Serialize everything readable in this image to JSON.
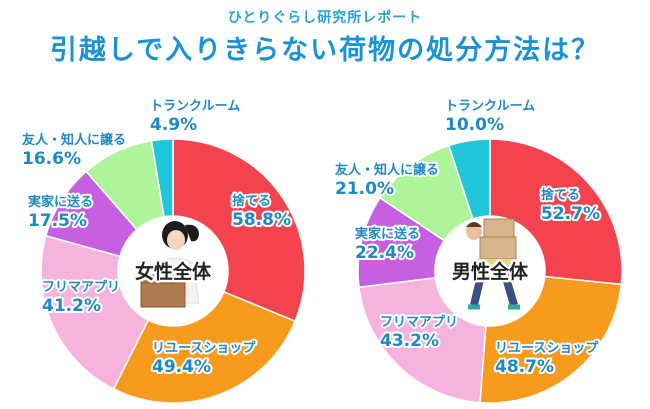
{
  "header": {
    "supertitle": "ひとりぐらし研究所レポート",
    "title": "引越しで入りきらない荷物の処分方法は？"
  },
  "colors": {
    "title": "#1a93d6",
    "labels": "#1e88c8",
    "segments": [
      "#f2434f",
      "#f79b1f",
      "#f5b3dd",
      "#c65fe0",
      "#aef59a",
      "#1fc6dc"
    ]
  },
  "chart_data": [
    {
      "type": "donut",
      "center_label": "女性全体",
      "categories": [
        "捨てる",
        "リユースショップ",
        "フリマアプリ",
        "実家に送る",
        "友人・知人に譲る",
        "トランクルーム"
      ],
      "values": [
        58.8,
        49.4,
        41.2,
        17.5,
        16.6,
        4.9
      ],
      "value_labels": [
        "58.8%",
        "49.4%",
        "41.2%",
        "17.5%",
        "16.6%",
        "4.9%"
      ],
      "illustration": "woman-carrying-box"
    },
    {
      "type": "donut",
      "center_label": "男性全体",
      "categories": [
        "捨てる",
        "リユースショップ",
        "フリマアプリ",
        "実家に送る",
        "友人・知人に譲る",
        "トランクルーム"
      ],
      "values": [
        52.7,
        48.7,
        43.2,
        22.4,
        21.0,
        10.0
      ],
      "value_labels": [
        "52.7%",
        "48.7%",
        "43.2%",
        "22.4%",
        "21.0%",
        "10.0%"
      ],
      "illustration": "man-carrying-boxes"
    }
  ]
}
